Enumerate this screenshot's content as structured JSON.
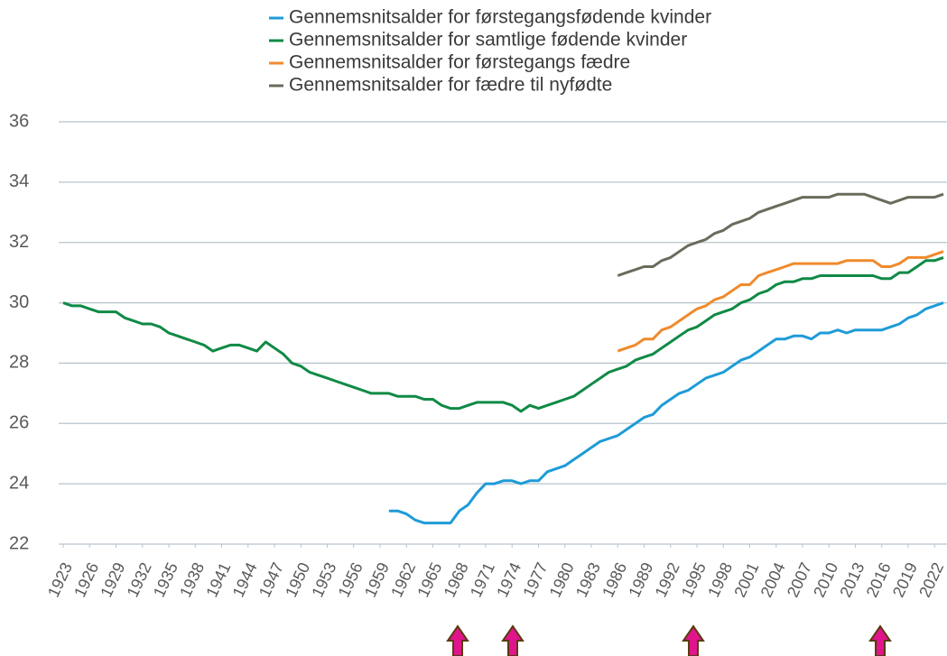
{
  "chart_data": {
    "type": "line",
    "x": [
      1923,
      1924,
      1925,
      1926,
      1927,
      1928,
      1929,
      1930,
      1931,
      1932,
      1933,
      1934,
      1935,
      1936,
      1937,
      1938,
      1939,
      1940,
      1941,
      1942,
      1943,
      1944,
      1945,
      1946,
      1947,
      1948,
      1949,
      1950,
      1951,
      1952,
      1953,
      1954,
      1955,
      1956,
      1957,
      1958,
      1959,
      1960,
      1961,
      1962,
      1963,
      1964,
      1965,
      1966,
      1967,
      1968,
      1969,
      1970,
      1971,
      1972,
      1973,
      1974,
      1975,
      1976,
      1977,
      1978,
      1979,
      1980,
      1981,
      1982,
      1983,
      1984,
      1985,
      1986,
      1987,
      1988,
      1989,
      1990,
      1991,
      1992,
      1993,
      1994,
      1995,
      1996,
      1997,
      1998,
      1999,
      2000,
      2001,
      2002,
      2003,
      2004,
      2005,
      2006,
      2007,
      2008,
      2009,
      2010,
      2011,
      2012,
      2013,
      2014,
      2015,
      2016,
      2017,
      2018,
      2019,
      2020,
      2021,
      2022,
      2023
    ],
    "series": [
      {
        "name": "Gennemsnitsalder for førstegangsfødende kvinder",
        "color": "#1f9bd7",
        "values": [
          null,
          null,
          null,
          null,
          null,
          null,
          null,
          null,
          null,
          null,
          null,
          null,
          null,
          null,
          null,
          null,
          null,
          null,
          null,
          null,
          null,
          null,
          null,
          null,
          null,
          null,
          null,
          null,
          null,
          null,
          null,
          null,
          null,
          null,
          null,
          null,
          null,
          23.1,
          23.1,
          23.0,
          22.8,
          22.7,
          22.7,
          22.7,
          22.7,
          23.1,
          23.3,
          23.7,
          24.0,
          24.0,
          24.1,
          24.1,
          24.0,
          24.1,
          24.1,
          24.4,
          24.5,
          24.6,
          24.8,
          25.0,
          25.2,
          25.4,
          25.5,
          25.6,
          25.8,
          26.0,
          26.2,
          26.3,
          26.6,
          26.8,
          27.0,
          27.1,
          27.3,
          27.5,
          27.6,
          27.7,
          27.9,
          28.1,
          28.2,
          28.4,
          28.6,
          28.8,
          28.8,
          28.9,
          28.9,
          28.8,
          29.0,
          29.0,
          29.1,
          29.0,
          29.1,
          29.1,
          29.1,
          29.1,
          29.2,
          29.3,
          29.5,
          29.6,
          29.8,
          29.9,
          30.0
        ]
      },
      {
        "name": "Gennemsnitsalder for samtlige fødende kvinder",
        "color": "#0f8a45",
        "values": [
          30.0,
          29.9,
          29.9,
          29.8,
          29.7,
          29.7,
          29.7,
          29.5,
          29.4,
          29.3,
          29.3,
          29.2,
          29.0,
          28.9,
          28.8,
          28.7,
          28.6,
          28.4,
          28.5,
          28.6,
          28.6,
          28.5,
          28.4,
          28.7,
          28.5,
          28.3,
          28.0,
          27.9,
          27.7,
          27.6,
          27.5,
          27.4,
          27.3,
          27.2,
          27.1,
          27.0,
          27.0,
          27.0,
          26.9,
          26.9,
          26.9,
          26.8,
          26.8,
          26.6,
          26.5,
          26.5,
          26.6,
          26.7,
          26.7,
          26.7,
          26.7,
          26.6,
          26.4,
          26.6,
          26.5,
          26.6,
          26.7,
          26.8,
          26.9,
          27.1,
          27.3,
          27.5,
          27.7,
          27.8,
          27.9,
          28.1,
          28.2,
          28.3,
          28.5,
          28.7,
          28.9,
          29.1,
          29.2,
          29.4,
          29.6,
          29.7,
          29.8,
          30.0,
          30.1,
          30.3,
          30.4,
          30.6,
          30.7,
          30.7,
          30.8,
          30.8,
          30.9,
          30.9,
          30.9,
          30.9,
          30.9,
          30.9,
          30.9,
          30.8,
          30.8,
          31.0,
          31.0,
          31.2,
          31.4,
          31.4,
          31.5
        ]
      },
      {
        "name": "Gennemsnitsalder for førstegangs fædre",
        "color": "#f08a2c",
        "values": [
          null,
          null,
          null,
          null,
          null,
          null,
          null,
          null,
          null,
          null,
          null,
          null,
          null,
          null,
          null,
          null,
          null,
          null,
          null,
          null,
          null,
          null,
          null,
          null,
          null,
          null,
          null,
          null,
          null,
          null,
          null,
          null,
          null,
          null,
          null,
          null,
          null,
          null,
          null,
          null,
          null,
          null,
          null,
          null,
          null,
          null,
          null,
          null,
          null,
          null,
          null,
          null,
          null,
          null,
          null,
          null,
          null,
          null,
          null,
          null,
          null,
          null,
          null,
          28.4,
          28.5,
          28.6,
          28.8,
          28.8,
          29.1,
          29.2,
          29.4,
          29.6,
          29.8,
          29.9,
          30.1,
          30.2,
          30.4,
          30.6,
          30.6,
          30.9,
          31.0,
          31.1,
          31.2,
          31.3,
          31.3,
          31.3,
          31.3,
          31.3,
          31.3,
          31.4,
          31.4,
          31.4,
          31.4,
          31.2,
          31.2,
          31.3,
          31.5,
          31.5,
          31.5,
          31.6,
          31.7
        ]
      },
      {
        "name": "Gennemsnitsalder for fædre til nyfødte",
        "color": "#6b6b5c",
        "values": [
          null,
          null,
          null,
          null,
          null,
          null,
          null,
          null,
          null,
          null,
          null,
          null,
          null,
          null,
          null,
          null,
          null,
          null,
          null,
          null,
          null,
          null,
          null,
          null,
          null,
          null,
          null,
          null,
          null,
          null,
          null,
          null,
          null,
          null,
          null,
          null,
          null,
          null,
          null,
          null,
          null,
          null,
          null,
          null,
          null,
          null,
          null,
          null,
          null,
          null,
          null,
          null,
          null,
          null,
          null,
          null,
          null,
          null,
          null,
          null,
          null,
          null,
          null,
          30.9,
          31.0,
          31.1,
          31.2,
          31.2,
          31.4,
          31.5,
          31.7,
          31.9,
          32.0,
          32.1,
          32.3,
          32.4,
          32.6,
          32.7,
          32.8,
          33.0,
          33.1,
          33.2,
          33.3,
          33.4,
          33.5,
          33.5,
          33.5,
          33.5,
          33.6,
          33.6,
          33.6,
          33.6,
          33.5,
          33.4,
          33.3,
          33.4,
          33.5,
          33.5,
          33.5,
          33.5,
          33.6
        ]
      }
    ],
    "xlim": [
      1923,
      2023
    ],
    "xticks": [
      1923,
      1926,
      1929,
      1932,
      1935,
      1938,
      1941,
      1944,
      1947,
      1950,
      1953,
      1956,
      1959,
      1962,
      1965,
      1968,
      1971,
      1974,
      1977,
      1980,
      1983,
      1986,
      1989,
      1992,
      1995,
      1998,
      2001,
      2004,
      2007,
      2010,
      2013,
      2016,
      2019,
      2022
    ],
    "ylim": [
      22,
      36
    ],
    "yticks": [
      22,
      24,
      26,
      28,
      30,
      32,
      34,
      36
    ],
    "grid": true,
    "legend": "top"
  }
}
